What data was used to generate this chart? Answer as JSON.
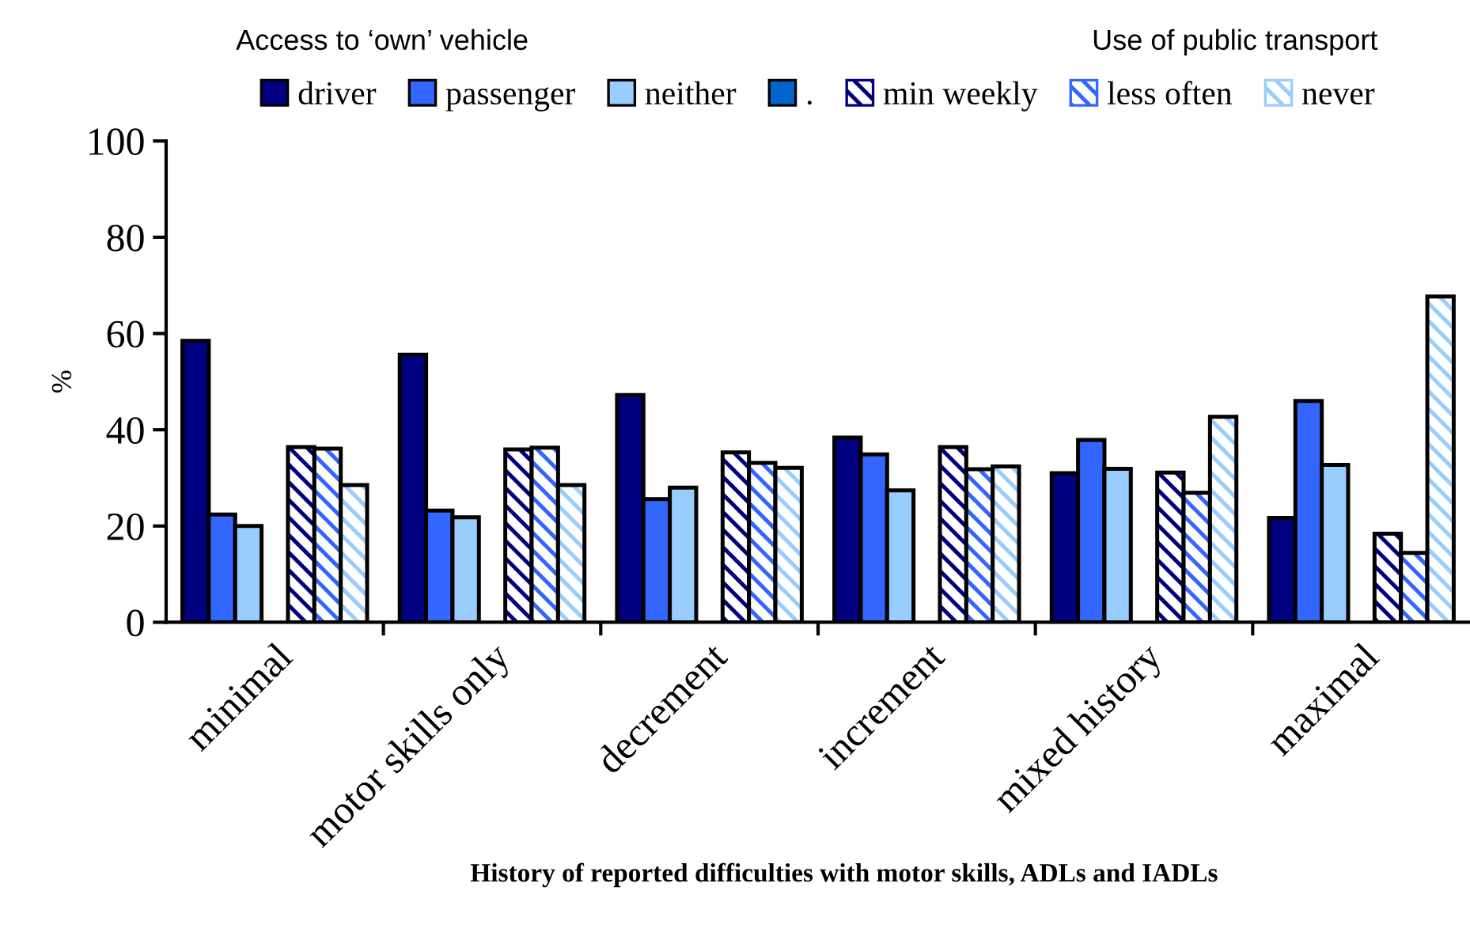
{
  "chart_data": {
    "type": "bar",
    "xlabel": "History of reported difficulties with motor skills, ADLs and IADLs",
    "ylabel": "%",
    "annotations": [
      "Access to ‘own’ vehicle",
      "Use of public transport"
    ],
    "categories": [
      "minimal",
      "motor skills only",
      "decrement",
      "increment",
      "mixed history",
      "maximal"
    ],
    "series": [
      {
        "name": "driver",
        "color": "#000080",
        "values": [
          58.5,
          55.6,
          47.2,
          38.4,
          31,
          21.7
        ]
      },
      {
        "name": "passenger",
        "color": "#3366ff",
        "values": [
          22.4,
          23.2,
          25.6,
          34.9,
          37.9,
          46
        ]
      },
      {
        "name": "neither",
        "color": "#99ccff",
        "values": [
          20,
          21.8,
          28,
          27.4,
          31.9,
          32.7
        ]
      },
      {
        "name": ".",
        "color": "#0066cc",
        "values": [
          null,
          null,
          null,
          null,
          null,
          null
        ]
      },
      {
        "name": "min weekly",
        "color": "#000080",
        "values": [
          36.4,
          35.9,
          35.3,
          36.4,
          31.1,
          18.4
        ]
      },
      {
        "name": "less often",
        "color": "#3366ff",
        "values": [
          36.1,
          36.3,
          33.1,
          31.8,
          26.9,
          14.4
        ]
      },
      {
        "name": "never",
        "color": "#99ccff",
        "values": [
          28.5,
          28.5,
          32.1,
          32.4,
          42.7,
          67.7
        ]
      }
    ],
    "ylim": [
      0,
      100
    ],
    "yticks": [
      0,
      20,
      40,
      60,
      80,
      100
    ],
    "grid": false,
    "legend": "top"
  }
}
